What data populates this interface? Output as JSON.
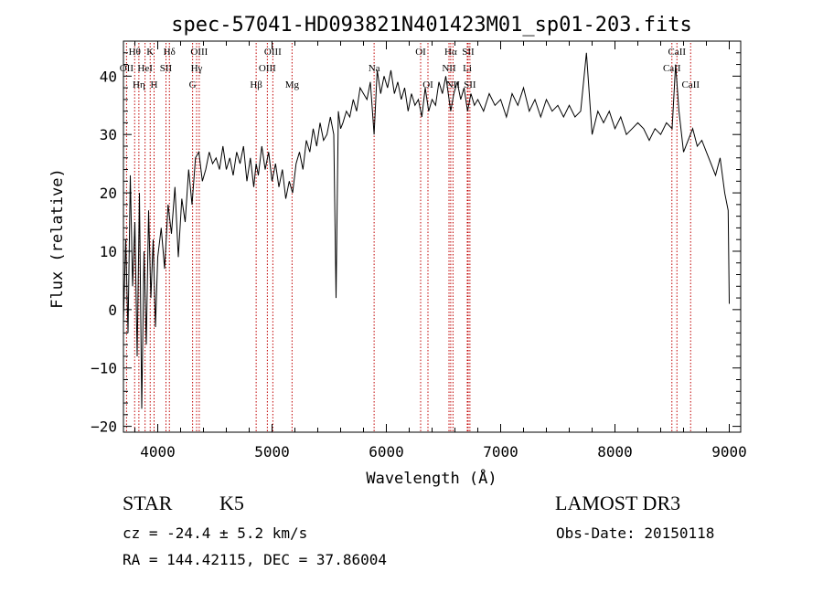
{
  "chart_data": {
    "type": "line",
    "title": "spec-57041-HD093821N401423M01_sp01-203.fits",
    "xlabel": "Wavelength (Å)",
    "ylabel": "Flux (relative)",
    "xlim": [
      3700,
      9100
    ],
    "ylim": [
      -21,
      46
    ],
    "xticks": [
      4000,
      5000,
      6000,
      7000,
      8000,
      9000
    ],
    "yticks": [
      -20,
      -10,
      0,
      10,
      20,
      30,
      40
    ],
    "grid": false,
    "series": [
      {
        "name": "flux",
        "x": [
          3700,
          3720,
          3740,
          3760,
          3780,
          3800,
          3820,
          3840,
          3860,
          3880,
          3900,
          3920,
          3940,
          3960,
          3980,
          4000,
          4030,
          4060,
          4090,
          4120,
          4150,
          4180,
          4210,
          4240,
          4270,
          4300,
          4330,
          4360,
          4390,
          4420,
          4450,
          4480,
          4510,
          4540,
          4570,
          4600,
          4630,
          4660,
          4690,
          4720,
          4750,
          4780,
          4810,
          4840,
          4861,
          4880,
          4910,
          4940,
          4970,
          5000,
          5030,
          5060,
          5090,
          5120,
          5150,
          5180,
          5210,
          5240,
          5270,
          5300,
          5330,
          5360,
          5390,
          5420,
          5450,
          5480,
          5510,
          5540,
          5560,
          5580,
          5600,
          5620,
          5650,
          5680,
          5710,
          5740,
          5770,
          5800,
          5830,
          5860,
          5893,
          5920,
          5950,
          5980,
          6010,
          6040,
          6070,
          6100,
          6130,
          6160,
          6190,
          6220,
          6250,
          6280,
          6310,
          6340,
          6370,
          6400,
          6430,
          6460,
          6490,
          6520,
          6563,
          6590,
          6620,
          6650,
          6680,
          6710,
          6740,
          6770,
          6800,
          6850,
          6900,
          6950,
          7000,
          7050,
          7100,
          7150,
          7200,
          7250,
          7300,
          7350,
          7400,
          7450,
          7500,
          7550,
          7600,
          7650,
          7700,
          7750,
          7800,
          7850,
          7900,
          7950,
          8000,
          8050,
          8100,
          8150,
          8200,
          8250,
          8300,
          8350,
          8400,
          8450,
          8500,
          8530,
          8560,
          8600,
          8640,
          8680,
          8720,
          8760,
          8800,
          8840,
          8880,
          8920,
          8960,
          8990,
          9000
        ],
        "y": [
          -2,
          12,
          -4,
          23,
          4,
          15,
          -8,
          20,
          -17,
          10,
          -6,
          17,
          2,
          12,
          -3,
          9,
          14,
          7,
          18,
          13,
          21,
          9,
          19,
          15,
          24,
          18,
          26,
          27,
          22,
          24,
          27,
          25,
          26,
          24,
          28,
          24,
          26,
          23,
          27,
          25,
          28,
          22,
          26,
          21,
          25,
          23,
          28,
          24,
          27,
          22,
          25,
          21,
          24,
          19,
          22,
          20,
          25,
          27,
          24,
          29,
          27,
          31,
          28,
          32,
          29,
          30,
          33,
          30,
          2,
          34,
          31,
          32,
          34,
          33,
          36,
          34,
          38,
          37,
          36,
          39,
          30,
          41,
          37,
          40,
          38,
          41,
          37,
          39,
          36,
          38,
          34,
          37,
          35,
          36,
          33,
          38,
          34,
          36,
          35,
          39,
          37,
          40,
          34,
          37,
          39,
          36,
          38,
          34,
          37,
          35,
          36,
          34,
          37,
          35,
          36,
          33,
          37,
          35,
          38,
          34,
          36,
          33,
          36,
          34,
          35,
          33,
          35,
          33,
          34,
          44,
          30,
          34,
          32,
          34,
          31,
          33,
          30,
          31,
          32,
          31,
          29,
          31,
          30,
          32,
          31,
          42,
          34,
          27,
          29,
          31,
          28,
          29,
          27,
          25,
          23,
          26,
          20,
          17,
          1
        ]
      }
    ],
    "lines": [
      {
        "label": "Hθ",
        "x": 3798,
        "row": 0
      },
      {
        "label": "OII",
        "x": 3727,
        "row": 1
      },
      {
        "label": "Hη",
        "x": 3835,
        "row": 2
      },
      {
        "label": "HeI",
        "x": 3889,
        "row": 1
      },
      {
        "label": "K",
        "x": 3934,
        "row": 0
      },
      {
        "label": "H",
        "x": 3968,
        "row": 2
      },
      {
        "label": "SII",
        "x": 4072,
        "row": 1
      },
      {
        "label": "Hδ",
        "x": 4102,
        "row": 0
      },
      {
        "label": "OIII",
        "x": 4363,
        "row": 0
      },
      {
        "label": "Hγ",
        "x": 4340,
        "row": 1
      },
      {
        "label": "G",
        "x": 4305,
        "row": 2
      },
      {
        "label": "Hβ",
        "x": 4861,
        "row": 2
      },
      {
        "label": "OIII",
        "x": 4959,
        "row": 1
      },
      {
        "label": "OIII",
        "x": 5007,
        "row": 0
      },
      {
        "label": "Mg",
        "x": 5175,
        "row": 2
      },
      {
        "label": "Na",
        "x": 5893,
        "row": 1
      },
      {
        "label": "OI",
        "x": 6300,
        "row": 0
      },
      {
        "label": "OI",
        "x": 6364,
        "row": 2
      },
      {
        "label": "Hα",
        "x": 6563,
        "row": 0
      },
      {
        "label": "NII",
        "x": 6548,
        "row": 1
      },
      {
        "label": "NII",
        "x": 6583,
        "row": 2
      },
      {
        "label": "SII",
        "x": 6716,
        "row": 0
      },
      {
        "label": "Li",
        "x": 6708,
        "row": 1
      },
      {
        "label": "SII",
        "x": 6731,
        "row": 2
      },
      {
        "label": "CaII",
        "x": 8498,
        "row": 1
      },
      {
        "label": "CaII",
        "x": 8542,
        "row": 0
      },
      {
        "label": "CaII",
        "x": 8662,
        "row": 2
      }
    ],
    "line_color": "#c00000"
  },
  "info": {
    "class": "STAR",
    "subclass": "K5",
    "survey": "LAMOST DR3",
    "cz": "cz = -24.4 ± 5.2 km/s",
    "obs_date": "Obs-Date: 20150118",
    "radec": "RA = 144.42115, DEC =  37.86004"
  }
}
